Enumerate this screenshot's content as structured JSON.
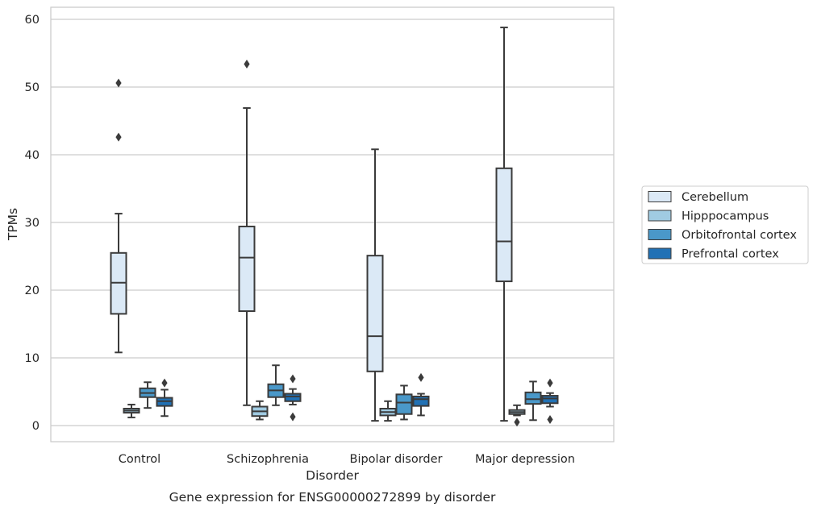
{
  "chart_data": {
    "type": "box",
    "title": "Gene expression for ENSG00000272899 by disorder",
    "xlabel": "Disorder",
    "ylabel": "TPMs",
    "ylim": [
      -2.3,
      62
    ],
    "yticks": [
      0,
      10,
      20,
      30,
      40,
      50,
      60
    ],
    "grid": "horizontal",
    "legend_position": "right",
    "categories": [
      "Control",
      "Schizophrenia",
      "Bipolar disorder",
      "Major depression"
    ],
    "series": [
      {
        "name": "Cerebellum",
        "color": "#dbe9f6",
        "boxes": [
          {
            "whisker_low": 10.8,
            "q1": 16.5,
            "median": 21.1,
            "q3": 25.5,
            "whisker_high": 31.3,
            "outliers": [
              42.6,
              50.6
            ]
          },
          {
            "whisker_low": 3.0,
            "q1": 16.9,
            "median": 24.8,
            "q3": 29.4,
            "whisker_high": 46.9,
            "outliers": [
              53.4
            ]
          },
          {
            "whisker_low": 0.7,
            "q1": 8.0,
            "median": 13.2,
            "q3": 25.1,
            "whisker_high": 40.8,
            "outliers": []
          },
          {
            "whisker_low": 0.7,
            "q1": 21.3,
            "median": 27.2,
            "q3": 38.0,
            "whisker_high": 58.8,
            "outliers": []
          }
        ]
      },
      {
        "name": "Hipppocampus",
        "color": "#a0cbe2",
        "boxes": [
          {
            "whisker_low": 1.2,
            "q1": 1.9,
            "median": 2.2,
            "q3": 2.5,
            "whisker_high": 3.1,
            "outliers": []
          },
          {
            "whisker_low": 0.9,
            "q1": 1.4,
            "median": 2.1,
            "q3": 2.8,
            "whisker_high": 3.6,
            "outliers": []
          },
          {
            "whisker_low": 0.7,
            "q1": 1.5,
            "median": 2.0,
            "q3": 2.5,
            "whisker_high": 3.6,
            "outliers": []
          },
          {
            "whisker_low": 1.5,
            "q1": 1.7,
            "median": 2.0,
            "q3": 2.3,
            "whisker_high": 3.0,
            "outliers": [
              0.5
            ]
          }
        ]
      },
      {
        "name": "Orbitofrontal cortex",
        "color": "#4a98c9",
        "boxes": [
          {
            "whisker_low": 2.6,
            "q1": 4.2,
            "median": 4.8,
            "q3": 5.5,
            "whisker_high": 6.4,
            "outliers": []
          },
          {
            "whisker_low": 3.0,
            "q1": 4.2,
            "median": 5.2,
            "q3": 6.1,
            "whisker_high": 8.9,
            "outliers": []
          },
          {
            "whisker_low": 0.9,
            "q1": 1.7,
            "median": 3.4,
            "q3": 4.6,
            "whisker_high": 5.9,
            "outliers": []
          },
          {
            "whisker_low": 0.8,
            "q1": 3.2,
            "median": 3.9,
            "q3": 4.9,
            "whisker_high": 6.5,
            "outliers": []
          }
        ]
      },
      {
        "name": "Prefrontal cortex",
        "color": "#2171b5",
        "boxes": [
          {
            "whisker_low": 1.4,
            "q1": 2.9,
            "median": 3.6,
            "q3": 4.1,
            "whisker_high": 5.3,
            "outliers": [
              6.3
            ]
          },
          {
            "whisker_low": 3.1,
            "q1": 3.6,
            "median": 4.3,
            "q3": 4.7,
            "whisker_high": 5.4,
            "outliers": [
              1.3,
              6.9
            ]
          },
          {
            "whisker_low": 1.5,
            "q1": 2.9,
            "median": 3.9,
            "q3": 4.3,
            "whisker_high": 4.7,
            "outliers": [
              7.1
            ]
          },
          {
            "whisker_low": 2.8,
            "q1": 3.3,
            "median": 4.0,
            "q3": 4.4,
            "whisker_high": 4.8,
            "outliers": [
              0.9,
              6.3
            ]
          }
        ]
      }
    ]
  }
}
